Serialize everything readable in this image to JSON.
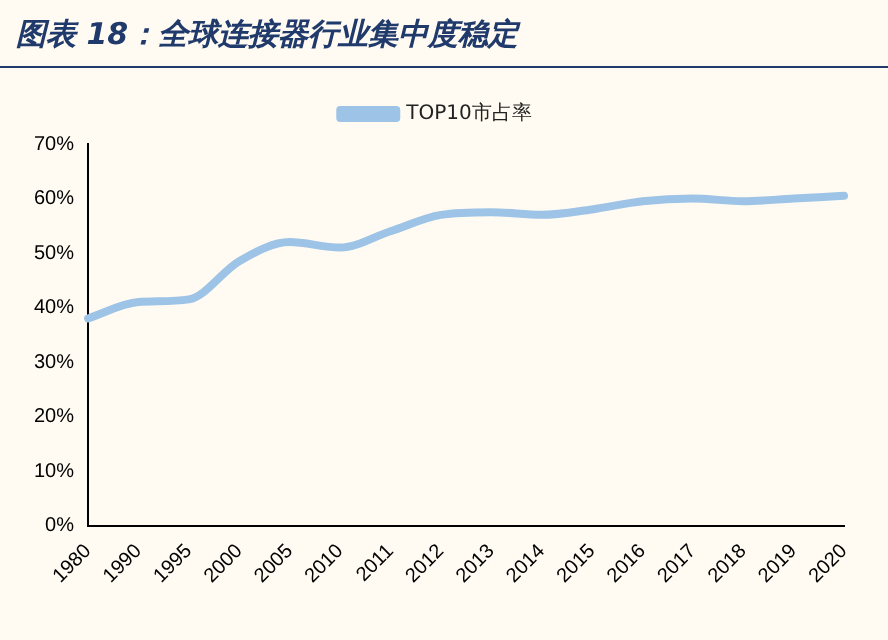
{
  "chart_data": {
    "type": "line",
    "title": "图表 18：全球连接器行业集中度稳定",
    "categories": [
      "1980",
      "1990",
      "1995",
      "2000",
      "2005",
      "2010",
      "2011",
      "2012",
      "2013",
      "2014",
      "2015",
      "2016",
      "2017",
      "2018",
      "2019",
      "2020"
    ],
    "series": [
      {
        "name": "TOP10市占率",
        "color": "#9dc3e6",
        "values": [
          38,
          41,
          41.5,
          48.5,
          52,
          51,
          54,
          57,
          57.5,
          57,
          58,
          59.5,
          60,
          59.5,
          60,
          60.5
        ]
      }
    ],
    "ylim": [
      0,
      70
    ],
    "yticks": [
      {
        "value": 0,
        "label": "0%"
      },
      {
        "value": 10,
        "label": "10%"
      },
      {
        "value": 20,
        "label": "20%"
      },
      {
        "value": 30,
        "label": "30%"
      },
      {
        "value": 40,
        "label": "40%"
      },
      {
        "value": 50,
        "label": "50%"
      },
      {
        "value": 60,
        "label": "60%"
      },
      {
        "value": 70,
        "label": "70%"
      }
    ],
    "grid": false,
    "legend": "top",
    "marker": "none",
    "line_style": "solid"
  }
}
